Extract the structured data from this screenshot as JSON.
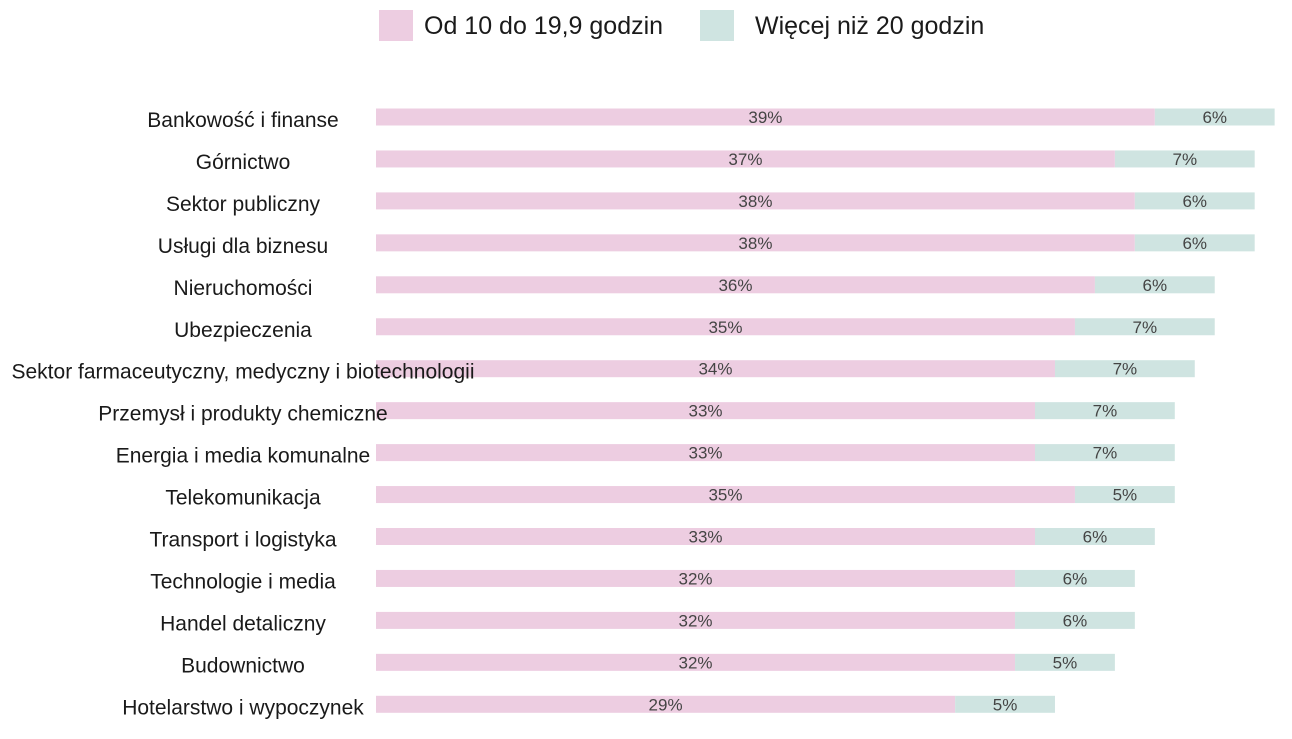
{
  "colors": {
    "series_1": "#edcde1",
    "series_2": "#cfe4e1"
  },
  "chart_data": {
    "type": "bar",
    "orientation": "horizontal",
    "stacked": true,
    "legend_position": "top-center",
    "grid": false,
    "title": "",
    "xlabel": "",
    "ylabel": "",
    "xlim": [
      0,
      45
    ],
    "categories": [
      "Bankowość i finanse",
      "Górnictwo",
      "Sektor publiczny",
      "Usługi dla biznesu",
      "Nieruchomości",
      "Ubezpieczenia",
      "Sektor farmaceutyczny, medyczny i biotechnologii",
      "Przemysł i produkty chemiczne",
      "Energia i media komunalne",
      "Telekomunikacja",
      "Transport i logistyka",
      "Technologie i media",
      "Handel detaliczny",
      "Budownictwo",
      "Hotelarstwo i wypoczynek"
    ],
    "series": [
      {
        "name": "Od 10 do 19,9 godzin",
        "values": [
          39,
          37,
          38,
          38,
          36,
          35,
          34,
          33,
          33,
          35,
          33,
          32,
          32,
          32,
          29
        ],
        "labels": [
          "39%",
          "37%",
          "38%",
          "38%",
          "36%",
          "35%",
          "34%",
          "33%",
          "33%",
          "35%",
          "33%",
          "32%",
          "32%",
          "32%",
          "29%"
        ]
      },
      {
        "name": "Więcej niż 20 godzin",
        "values": [
          6,
          7,
          6,
          6,
          6,
          7,
          7,
          7,
          7,
          5,
          6,
          6,
          6,
          5,
          5
        ],
        "labels": [
          "6%",
          "7%",
          "6%",
          "6%",
          "6%",
          "7%",
          "7%",
          "7%",
          "7%",
          "5%",
          "6%",
          "6%",
          "6%",
          "5%",
          "5%"
        ]
      }
    ]
  }
}
